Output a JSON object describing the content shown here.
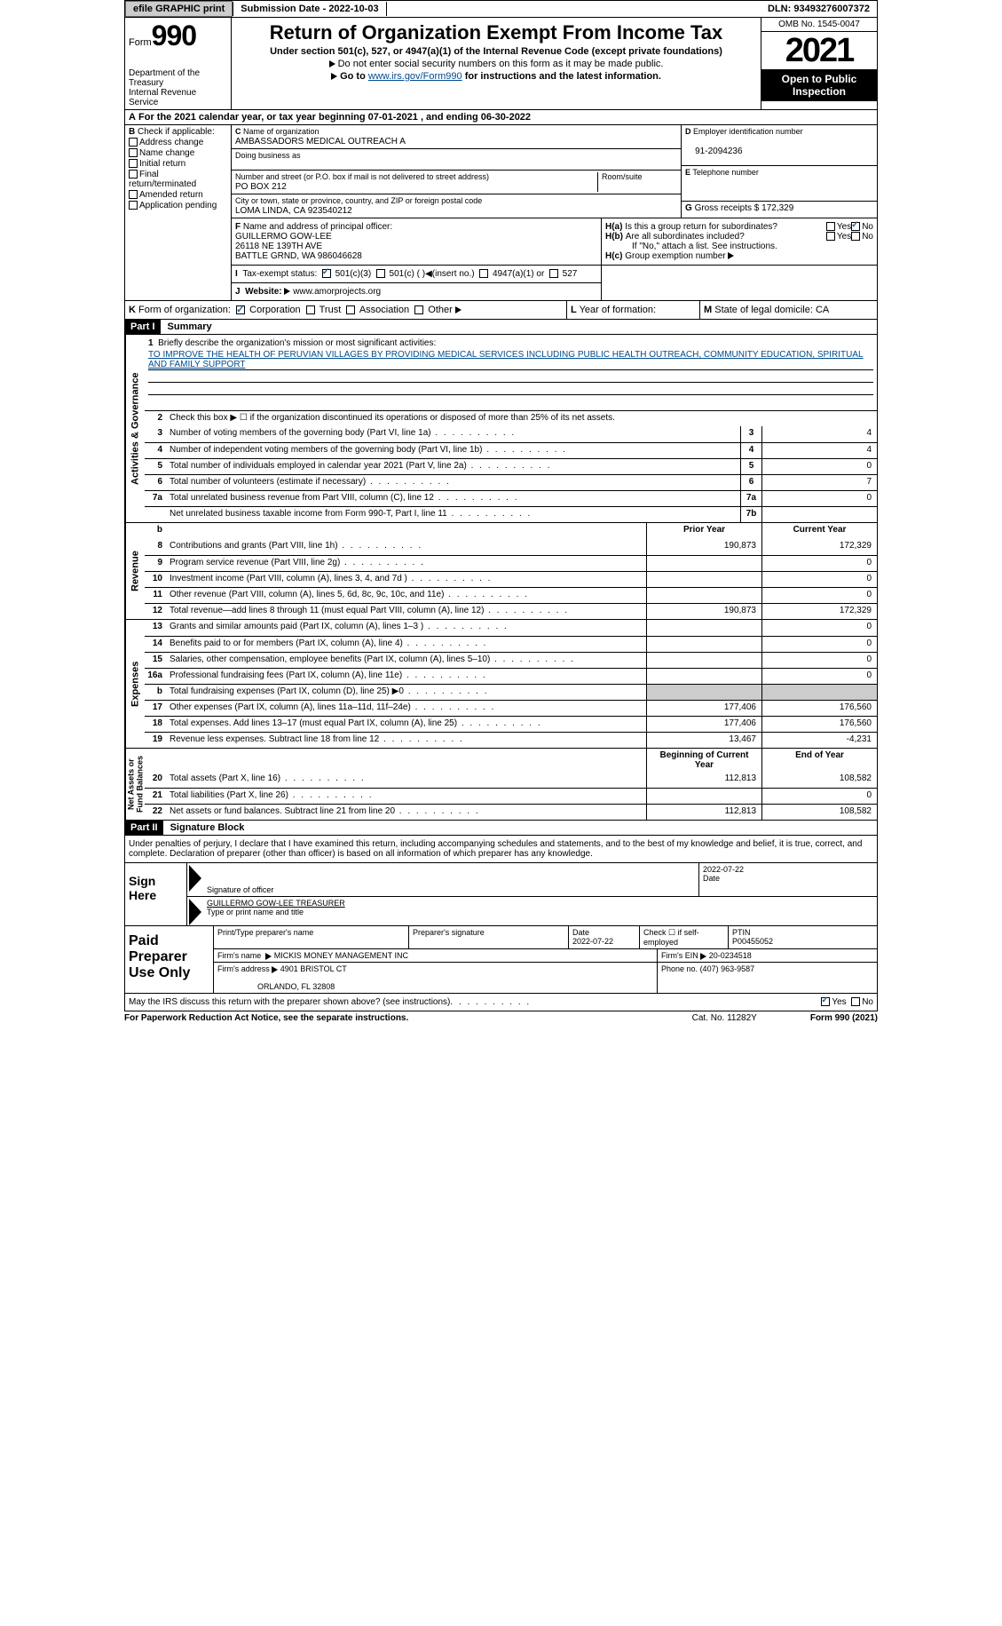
{
  "top": {
    "efile": "efile GRAPHIC print",
    "submission": "Submission Date - 2022-10-03",
    "dln": "DLN: 93493276007372"
  },
  "header": {
    "form": "Form",
    "formnum": "990",
    "dept": "Department of the Treasury\nInternal Revenue Service",
    "title": "Return of Organization Exempt From Income Tax",
    "subtitle": "Under section 501(c), 527, or 4947(a)(1) of the Internal Revenue Code (except private foundations)",
    "note1": "Do not enter social security numbers on this form as it may be made public.",
    "note2": "Go to",
    "link": "www.irs.gov/Form990",
    "note3": "for instructions and the latest information.",
    "omb": "OMB No. 1545-0047",
    "year": "2021",
    "inspection": "Open to Public Inspection"
  },
  "a": {
    "line": "For the 2021 calendar year, or tax year beginning 07-01-2021   , and ending 06-30-2022"
  },
  "b": {
    "label": "Check if applicable:",
    "opts": [
      "Address change",
      "Name change",
      "Initial return",
      "Final return/terminated",
      "Amended return",
      "Application pending"
    ]
  },
  "c": {
    "name_label": "Name of organization",
    "name": "AMBASSADORS MEDICAL OUTREACH A",
    "dba_label": "Doing business as",
    "addr_label": "Number and street (or P.O. box if mail is not delivered to street address)",
    "room_label": "Room/suite",
    "addr": "PO BOX 212",
    "city_label": "City or town, state or province, country, and ZIP or foreign postal code",
    "city": "LOMA LINDA, CA  923540212"
  },
  "d": {
    "label": "Employer identification number",
    "val": "91-2094236"
  },
  "e": {
    "label": "Telephone number",
    "val": ""
  },
  "g": {
    "label": "Gross receipts $",
    "val": "172,329"
  },
  "f": {
    "label": "Name and address of principal officer:",
    "name": "GUILLERMO GOW-LEE",
    "addr1": "26118 NE 139TH AVE",
    "addr2": "BATTLE GRND, WA  986046628"
  },
  "h": {
    "a": "Is this a group return for subordinates?",
    "b": "Are all subordinates included?",
    "b_note": "If \"No,\" attach a list. See instructions.",
    "c": "Group exemption number"
  },
  "i": {
    "label": "Tax-exempt status:",
    "o1": "501(c)(3)",
    "o2": "501(c) (  )",
    "o2b": "(insert no.)",
    "o3": "4947(a)(1) or",
    "o4": "527"
  },
  "j": {
    "label": "Website:",
    "val": "www.amorprojects.org"
  },
  "k": {
    "label": "Form of organization:",
    "o1": "Corporation",
    "o2": "Trust",
    "o3": "Association",
    "o4": "Other"
  },
  "l": {
    "label": "Year of formation:"
  },
  "m": {
    "label": "State of legal domicile:",
    "val": "CA"
  },
  "part1": {
    "title": "Part I",
    "name": "Summary",
    "mission_label": "Briefly describe the organization's mission or most significant activities:",
    "mission": "TO IMPROVE THE HEALTH OF PERUVIAN VILLAGES BY PROVIDING MEDICAL SERVICES INCLUDING PUBLIC HEALTH OUTREACH, COMMUNITY EDUCATION, SPIRITUAL AND FAMILY SUPPORT",
    "l2": "Check this box ▶ ☐ if the organization discontinued its operations or disposed of more than 25% of its net assets.",
    "rows_ag": [
      {
        "n": "3",
        "t": "Number of voting members of the governing body (Part VI, line 1a)",
        "b": "3",
        "v": "4"
      },
      {
        "n": "4",
        "t": "Number of independent voting members of the governing body (Part VI, line 1b)",
        "b": "4",
        "v": "4"
      },
      {
        "n": "5",
        "t": "Total number of individuals employed in calendar year 2021 (Part V, line 2a)",
        "b": "5",
        "v": "0"
      },
      {
        "n": "6",
        "t": "Total number of volunteers (estimate if necessary)",
        "b": "6",
        "v": "7"
      },
      {
        "n": "7a",
        "t": "Total unrelated business revenue from Part VIII, column (C), line 12",
        "b": "7a",
        "v": "0"
      },
      {
        "n": "",
        "t": "Net unrelated business taxable income from Form 990-T, Part I, line 11",
        "b": "7b",
        "v": ""
      }
    ],
    "hdr_prior": "Prior Year",
    "hdr_curr": "Current Year",
    "rows_rev": [
      {
        "n": "8",
        "t": "Contributions and grants (Part VIII, line 1h)",
        "p": "190,873",
        "c": "172,329"
      },
      {
        "n": "9",
        "t": "Program service revenue (Part VIII, line 2g)",
        "p": "",
        "c": "0"
      },
      {
        "n": "10",
        "t": "Investment income (Part VIII, column (A), lines 3, 4, and 7d )",
        "p": "",
        "c": "0"
      },
      {
        "n": "11",
        "t": "Other revenue (Part VIII, column (A), lines 5, 6d, 8c, 9c, 10c, and 11e)",
        "p": "",
        "c": "0"
      },
      {
        "n": "12",
        "t": "Total revenue—add lines 8 through 11 (must equal Part VIII, column (A), line 12)",
        "p": "190,873",
        "c": "172,329"
      }
    ],
    "rows_exp": [
      {
        "n": "13",
        "t": "Grants and similar amounts paid (Part IX, column (A), lines 1–3 )",
        "p": "",
        "c": "0"
      },
      {
        "n": "14",
        "t": "Benefits paid to or for members (Part IX, column (A), line 4)",
        "p": "",
        "c": "0"
      },
      {
        "n": "15",
        "t": "Salaries, other compensation, employee benefits (Part IX, column (A), lines 5–10)",
        "p": "",
        "c": "0"
      },
      {
        "n": "16a",
        "t": "Professional fundraising fees (Part IX, column (A), line 11e)",
        "p": "",
        "c": "0"
      },
      {
        "n": "b",
        "t": "Total fundraising expenses (Part IX, column (D), line 25) ▶0",
        "p": "SHADE",
        "c": "SHADE"
      },
      {
        "n": "17",
        "t": "Other expenses (Part IX, column (A), lines 11a–11d, 11f–24e)",
        "p": "177,406",
        "c": "176,560"
      },
      {
        "n": "18",
        "t": "Total expenses. Add lines 13–17 (must equal Part IX, column (A), line 25)",
        "p": "177,406",
        "c": "176,560"
      },
      {
        "n": "19",
        "t": "Revenue less expenses. Subtract line 18 from line 12",
        "p": "13,467",
        "c": "-4,231"
      }
    ],
    "hdr_beg": "Beginning of Current Year",
    "hdr_end": "End of Year",
    "rows_na": [
      {
        "n": "20",
        "t": "Total assets (Part X, line 16)",
        "p": "112,813",
        "c": "108,582"
      },
      {
        "n": "21",
        "t": "Total liabilities (Part X, line 26)",
        "p": "",
        "c": "0"
      },
      {
        "n": "22",
        "t": "Net assets or fund balances. Subtract line 21 from line 20",
        "p": "112,813",
        "c": "108,582"
      }
    ],
    "vert_ag": "Activities & Governance",
    "vert_rev": "Revenue",
    "vert_exp": "Expenses",
    "vert_na": "Net Assets or Fund Balances"
  },
  "part2": {
    "title": "Part II",
    "name": "Signature Block",
    "intro": "Under penalties of perjury, I declare that I have examined this return, including accompanying schedules and statements, and to the best of my knowledge and belief, it is true, correct, and complete. Declaration of preparer (other than officer) is based on all information of which preparer has any knowledge.",
    "sign_here": "Sign Here",
    "sig_of_officer": "Signature of officer",
    "date1": "2022-07-22",
    "date_lbl": "Date",
    "officer": "GUILLERMO GOW-LEE  TREASURER",
    "type_name": "Type or print name and title",
    "paid": "Paid Preparer Use Only",
    "p_name_lbl": "Print/Type preparer's name",
    "p_sig_lbl": "Preparer's signature",
    "p_date_lbl": "Date",
    "p_date": "2022-07-22",
    "p_check_lbl": "Check ☐ if self-employed",
    "ptin_lbl": "PTIN",
    "ptin": "P00455052",
    "firm_name_lbl": "Firm's name",
    "firm_name": "MICKIS MONEY MANAGEMENT INC",
    "firm_ein_lbl": "Firm's EIN",
    "firm_ein": "20-0234518",
    "firm_addr_lbl": "Firm's address",
    "firm_addr1": "4901 BRISTOL CT",
    "firm_addr2": "ORLANDO, FL  32808",
    "phone_lbl": "Phone no.",
    "phone": "(407) 963-9587",
    "may_irs": "May the IRS discuss this return with the preparer shown above? (see instructions)",
    "paperwork": "For Paperwork Reduction Act Notice, see the separate instructions.",
    "cat": "Cat. No. 11282Y",
    "formfoot": "Form 990 (2021)"
  }
}
